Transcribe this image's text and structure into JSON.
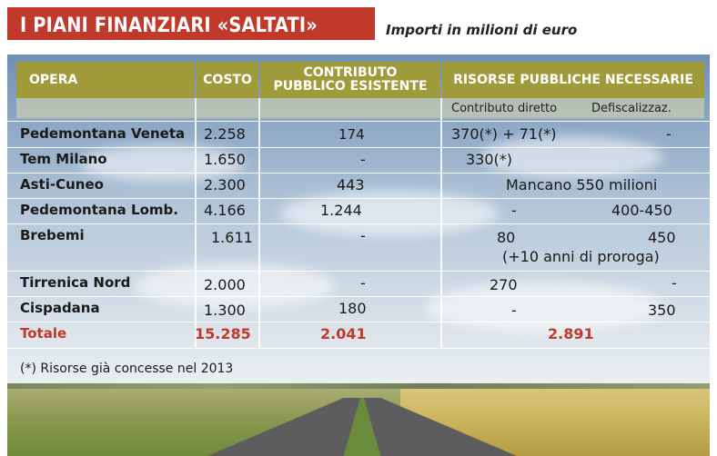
{
  "header": {
    "title": "I PIANI FINANZIARI «SALTATI»",
    "subtitle": "Importi in milioni di euro"
  },
  "table": {
    "col_opera": "OPERA",
    "col_costo": "COSTO",
    "col_contributo": "CONTRIBUTO PUBBLICO ESISTENTE",
    "col_risorse": "RISORSE PUBBLICHE NECESSARIE",
    "sub_contributo_diretto": "Contributo diretto",
    "sub_defiscalizz": "Defiscalizzaz.",
    "rows": [
      {
        "opera": "Pedemontana Veneta",
        "costo": "2.258",
        "contributo": "174",
        "diretto": "370(*) + 71(*)",
        "defisc": "-"
      },
      {
        "opera": "Tem Milano",
        "costo": "1.650",
        "contributo": "-",
        "diretto": "330(*)",
        "defisc": ""
      },
      {
        "opera": "Asti-Cuneo",
        "costo": "2.300",
        "contributo": "443",
        "merged": "Mancano 550 milioni"
      },
      {
        "opera": "Pedemontana Lomb.",
        "costo": "4.166",
        "contributo": "1.244",
        "diretto": "-",
        "defisc": "400-450"
      },
      {
        "opera": "Brebemi",
        "costo": "1.611",
        "contributo": "-",
        "diretto": "80",
        "defisc": "450",
        "extra": "(+10 anni di proroga)"
      },
      {
        "opera": "Tirrenica Nord",
        "costo": "2.000",
        "contributo": "-",
        "diretto": "270",
        "defisc": "-"
      },
      {
        "opera": "Cispadana",
        "costo": "1.300",
        "contributo": "180",
        "diretto": "-",
        "defisc": "350"
      }
    ],
    "total": {
      "label": "Totale",
      "costo": "15.285",
      "contributo": "2.041",
      "risorse": "2.891"
    },
    "note": "(*) Risorse già concesse nel 2013"
  }
}
